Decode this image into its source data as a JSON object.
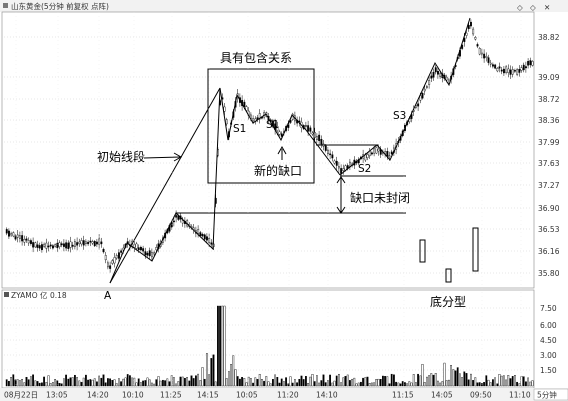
{
  "header": {
    "title": "山东黄金(5分钟 前复权 点阵)",
    "icons": [
      "diamond-icon",
      "diamond-icon",
      "close-icon"
    ]
  },
  "main_chart": {
    "price_axis": [
      "38.82",
      "39.09",
      "38.72",
      "38.36",
      "37.99",
      "37.63",
      "37.27",
      "36.90",
      "36.53",
      "36.16",
      "35.80"
    ],
    "grid": "dotted-horizontal",
    "candle_up_color": "#ffffff",
    "candle_down_color": "#000000"
  },
  "annotations": {
    "box_label": "具有包含关系",
    "initial_segment": "初始线段",
    "s1_a": "S1",
    "s1_b": "S1",
    "new_gap": "新的缺口",
    "s2": "S2",
    "s3": "S3",
    "gap_unsealed": "缺口未封闭",
    "bottom_fractal": "底分型",
    "point_a": "A"
  },
  "volume_panel": {
    "indicator": "ZYAMO",
    "unit": "亿",
    "value": "0.18",
    "axis": [
      "7.50",
      "6.00",
      "4.50",
      "3.00",
      "1.50"
    ]
  },
  "time_axis": {
    "labels": [
      "08月22日",
      "13:05",
      "14:20",
      "10:10",
      "11:25",
      "14:15",
      "10:05",
      "11:20",
      "14:10",
      "11:15",
      "14:05",
      "09:50",
      "11:10"
    ],
    "unit_label": "5分钟"
  }
}
